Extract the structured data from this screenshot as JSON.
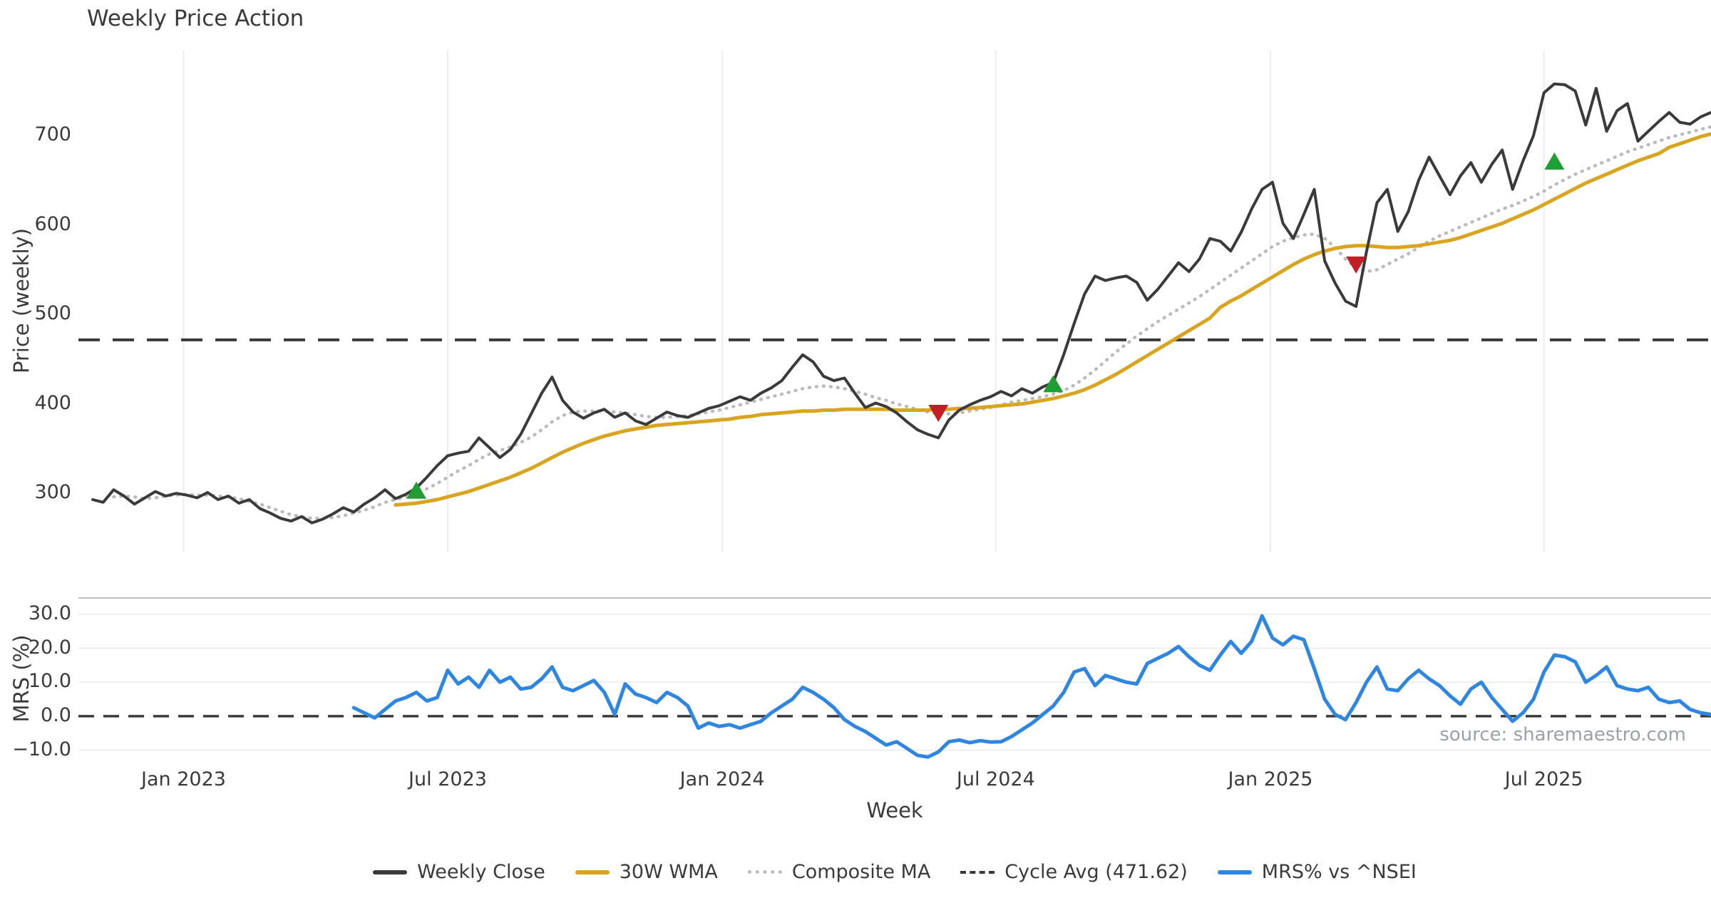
{
  "title": "Weekly Price Action",
  "x_axis": {
    "label": "Week"
  },
  "source_note": "source: sharemaestro.com",
  "legend": [
    {
      "label": "Weekly Close",
      "color": "#3a3a3a",
      "style": "solid"
    },
    {
      "label": "30W WMA",
      "color": "#d9a521",
      "style": "solid"
    },
    {
      "label": "Composite MA",
      "color": "#bbbbbb",
      "style": "dotted"
    },
    {
      "label": "Cycle Avg (471.62)",
      "color": "#3a3a3a",
      "style": "dashed"
    },
    {
      "label": "MRS% vs ^NSEI",
      "color": "#2e86e0",
      "style": "solid"
    }
  ],
  "chart_data": [
    {
      "type": "line",
      "id": "price",
      "title": "Weekly Price Action",
      "ylabel": "Price (weekly)",
      "ylim": [
        234,
        796
      ],
      "yticks": [
        300,
        400,
        500,
        600,
        700
      ],
      "yticklabels": [
        "300",
        "400",
        "500",
        "600",
        "700"
      ],
      "xlim": [
        -1.37,
        155
      ],
      "xticks": [
        {
          "week": 8.7,
          "label": "Jan 2023"
        },
        {
          "week": 34.0,
          "label": "Jul 2023"
        },
        {
          "week": 60.3,
          "label": "Jan 2024"
        },
        {
          "week": 86.5,
          "label": "Jul 2024"
        },
        {
          "week": 112.8,
          "label": "Jan 2025"
        },
        {
          "week": 139.0,
          "label": "Jul 2025"
        }
      ],
      "grid": "vertical",
      "hline": {
        "name": "Cycle Avg",
        "value": 471.62,
        "color": "#3a3a3a",
        "style": "dashed"
      },
      "series": [
        {
          "name": "Weekly Close",
          "color": "#3a3a3a",
          "style": "solid",
          "width": 4,
          "start_week": 0,
          "values": [
            293,
            290,
            304,
            297,
            288,
            295,
            302,
            297,
            300,
            298,
            295,
            301,
            293,
            297,
            289,
            293,
            283,
            278,
            272,
            269,
            274,
            267,
            271,
            277,
            284,
            279,
            288,
            295,
            304,
            294,
            299,
            306,
            318,
            331,
            342,
            345,
            347,
            362,
            351,
            340,
            349,
            366,
            389,
            412,
            430,
            404,
            391,
            384,
            390,
            394,
            385,
            390,
            381,
            377,
            384,
            391,
            387,
            385,
            390,
            395,
            398,
            403,
            408,
            404,
            412,
            418,
            426,
            441,
            455,
            447,
            431,
            426,
            429,
            412,
            396,
            401,
            397,
            390,
            380,
            371,
            366,
            362,
            382,
            393,
            399,
            404,
            408,
            414,
            409,
            417,
            412,
            419,
            424,
            455,
            490,
            523,
            543,
            538,
            541,
            543,
            536,
            516,
            528,
            543,
            558,
            548,
            562,
            585,
            582,
            571,
            592,
            618,
            640,
            648,
            602,
            585,
            612,
            640,
            560,
            535,
            515,
            509,
            570,
            625,
            640,
            593,
            615,
            650,
            676,
            655,
            634,
            655,
            670,
            648,
            668,
            684,
            640,
            672,
            700,
            748,
            758,
            757,
            750,
            712,
            753,
            705,
            728,
            736,
            694,
            705,
            716,
            726,
            715,
            713,
            721,
            726
          ]
        },
        {
          "name": "30W WMA",
          "color": "#d9a521",
          "style": "solid",
          "width": 5,
          "start_week": 29,
          "values": [
            287,
            288,
            289,
            291,
            293,
            296,
            299,
            302,
            306,
            310,
            314,
            318,
            323,
            328,
            334,
            340,
            346,
            351,
            356,
            360,
            364,
            367,
            370,
            372,
            374,
            376,
            377,
            378,
            379,
            380,
            381,
            382,
            383,
            385,
            386,
            388,
            389,
            390,
            391,
            392,
            392,
            393,
            393,
            394,
            394,
            394,
            394,
            394,
            393,
            393,
            393,
            393,
            394,
            394,
            395,
            395,
            396,
            397,
            398,
            399,
            400,
            402,
            404,
            406,
            409,
            412,
            416,
            421,
            427,
            433,
            440,
            447,
            454,
            461,
            468,
            475,
            482,
            489,
            496,
            508,
            515,
            521,
            528,
            535,
            542,
            549,
            556,
            562,
            567,
            571,
            574,
            576,
            577,
            577,
            576,
            575,
            575,
            576,
            577,
            579,
            581,
            583,
            586,
            590,
            594,
            598,
            602,
            607,
            612,
            617,
            623,
            629,
            635,
            641,
            647,
            652,
            657,
            662,
            667,
            672,
            676,
            680,
            687,
            691,
            695,
            699,
            702
          ]
        },
        {
          "name": "Composite MA",
          "color": "#bbbbbb",
          "style": "dotted",
          "width": 4.5,
          "start_week": 2,
          "values": [
            296,
            297,
            296,
            294,
            295,
            297,
            298,
            299,
            298,
            298,
            297,
            296,
            294,
            291,
            288,
            284,
            280,
            276,
            274,
            272,
            272,
            273,
            275,
            278,
            281,
            285,
            290,
            293,
            296,
            300,
            305,
            311,
            318,
            325,
            331,
            338,
            344,
            348,
            352,
            357,
            363,
            371,
            380,
            387,
            391,
            392,
            392,
            392,
            391,
            390,
            388,
            386,
            385,
            385,
            386,
            387,
            389,
            391,
            393,
            396,
            399,
            402,
            405,
            408,
            411,
            414,
            417,
            419,
            420,
            419,
            417,
            414,
            411,
            407,
            404,
            400,
            397,
            394,
            391,
            389,
            389,
            390,
            392,
            394,
            396,
            399,
            402,
            404,
            406,
            408,
            411,
            415,
            421,
            429,
            438,
            448,
            458,
            467,
            476,
            484,
            492,
            499,
            506,
            513,
            520,
            528,
            536,
            544,
            552,
            560,
            568,
            576,
            582,
            586,
            589,
            590,
            585,
            575,
            562,
            552,
            548,
            550,
            556,
            562,
            568,
            575,
            582,
            588,
            593,
            598,
            603,
            608,
            613,
            618,
            622,
            627,
            632,
            638,
            645,
            651,
            657,
            662,
            667,
            672,
            677,
            682,
            686,
            690,
            694,
            698,
            701,
            704,
            707,
            710
          ]
        }
      ],
      "markers": [
        {
          "week": 31,
          "price": 302,
          "type": "buy"
        },
        {
          "week": 81,
          "price": 391,
          "type": "sell"
        },
        {
          "week": 92,
          "price": 421,
          "type": "buy"
        },
        {
          "week": 121,
          "price": 557,
          "type": "sell"
        },
        {
          "week": 140,
          "price": 670,
          "type": "buy"
        }
      ],
      "marker_colors": {
        "buy": "#1e9e33",
        "sell": "#c41e25"
      }
    },
    {
      "type": "line",
      "id": "mrs",
      "ylabel": "MRS (%)",
      "ylim": [
        -12.6,
        35
      ],
      "yticks": [
        30,
        20,
        10,
        0,
        -10
      ],
      "yticklabels": [
        "30.0",
        "20.0",
        "10.0",
        "0.0",
        "−10.0"
      ],
      "xlim": [
        -1.37,
        155
      ],
      "grid": "horizontal",
      "hline": {
        "name": "Zero",
        "value": 0,
        "color": "#3a3a3a",
        "style": "dashed"
      },
      "series": [
        {
          "name": "MRS% vs ^NSEI",
          "color": "#2e86e0",
          "style": "solid",
          "width": 5,
          "start_week": 25,
          "values": [
            2.5,
            1,
            -0.5,
            2,
            4.5,
            5.5,
            7,
            4.5,
            5.5,
            13.5,
            9.5,
            11.5,
            8.5,
            13.5,
            10,
            11.5,
            8,
            8.5,
            11,
            14.5,
            8.5,
            7.5,
            9,
            10.5,
            7,
            0.5,
            9.5,
            6.5,
            5.5,
            4,
            7,
            5.5,
            3,
            -3.5,
            -2,
            -3,
            -2.5,
            -3.5,
            -2.5,
            -1.5,
            1,
            3,
            5,
            8.5,
            7,
            5,
            2.5,
            -1,
            -3,
            -4.5,
            -6.5,
            -8.5,
            -7.5,
            -9.5,
            -11.5,
            -12,
            -10.5,
            -7.5,
            -7,
            -7.8,
            -7.2,
            -7.6,
            -7.5,
            -6,
            -4,
            -2,
            0.5,
            3,
            7,
            13,
            14,
            9,
            12,
            11,
            10,
            9.5,
            15.5,
            17,
            18.5,
            20.5,
            17.5,
            15,
            13.5,
            18,
            22,
            18.5,
            22,
            29.5,
            23,
            21,
            23.5,
            22.5,
            14,
            5,
            0.5,
            -1,
            4,
            10,
            14.5,
            8,
            7.5,
            11,
            13.5,
            11,
            9,
            6,
            3.5,
            8,
            10,
            5.5,
            2,
            -1.5,
            1,
            5,
            13,
            18,
            17.5,
            16,
            10,
            12,
            14.5,
            9,
            8,
            7.5,
            8.5,
            5,
            4,
            4.5,
            2,
            1,
            0.5
          ]
        }
      ]
    }
  ]
}
